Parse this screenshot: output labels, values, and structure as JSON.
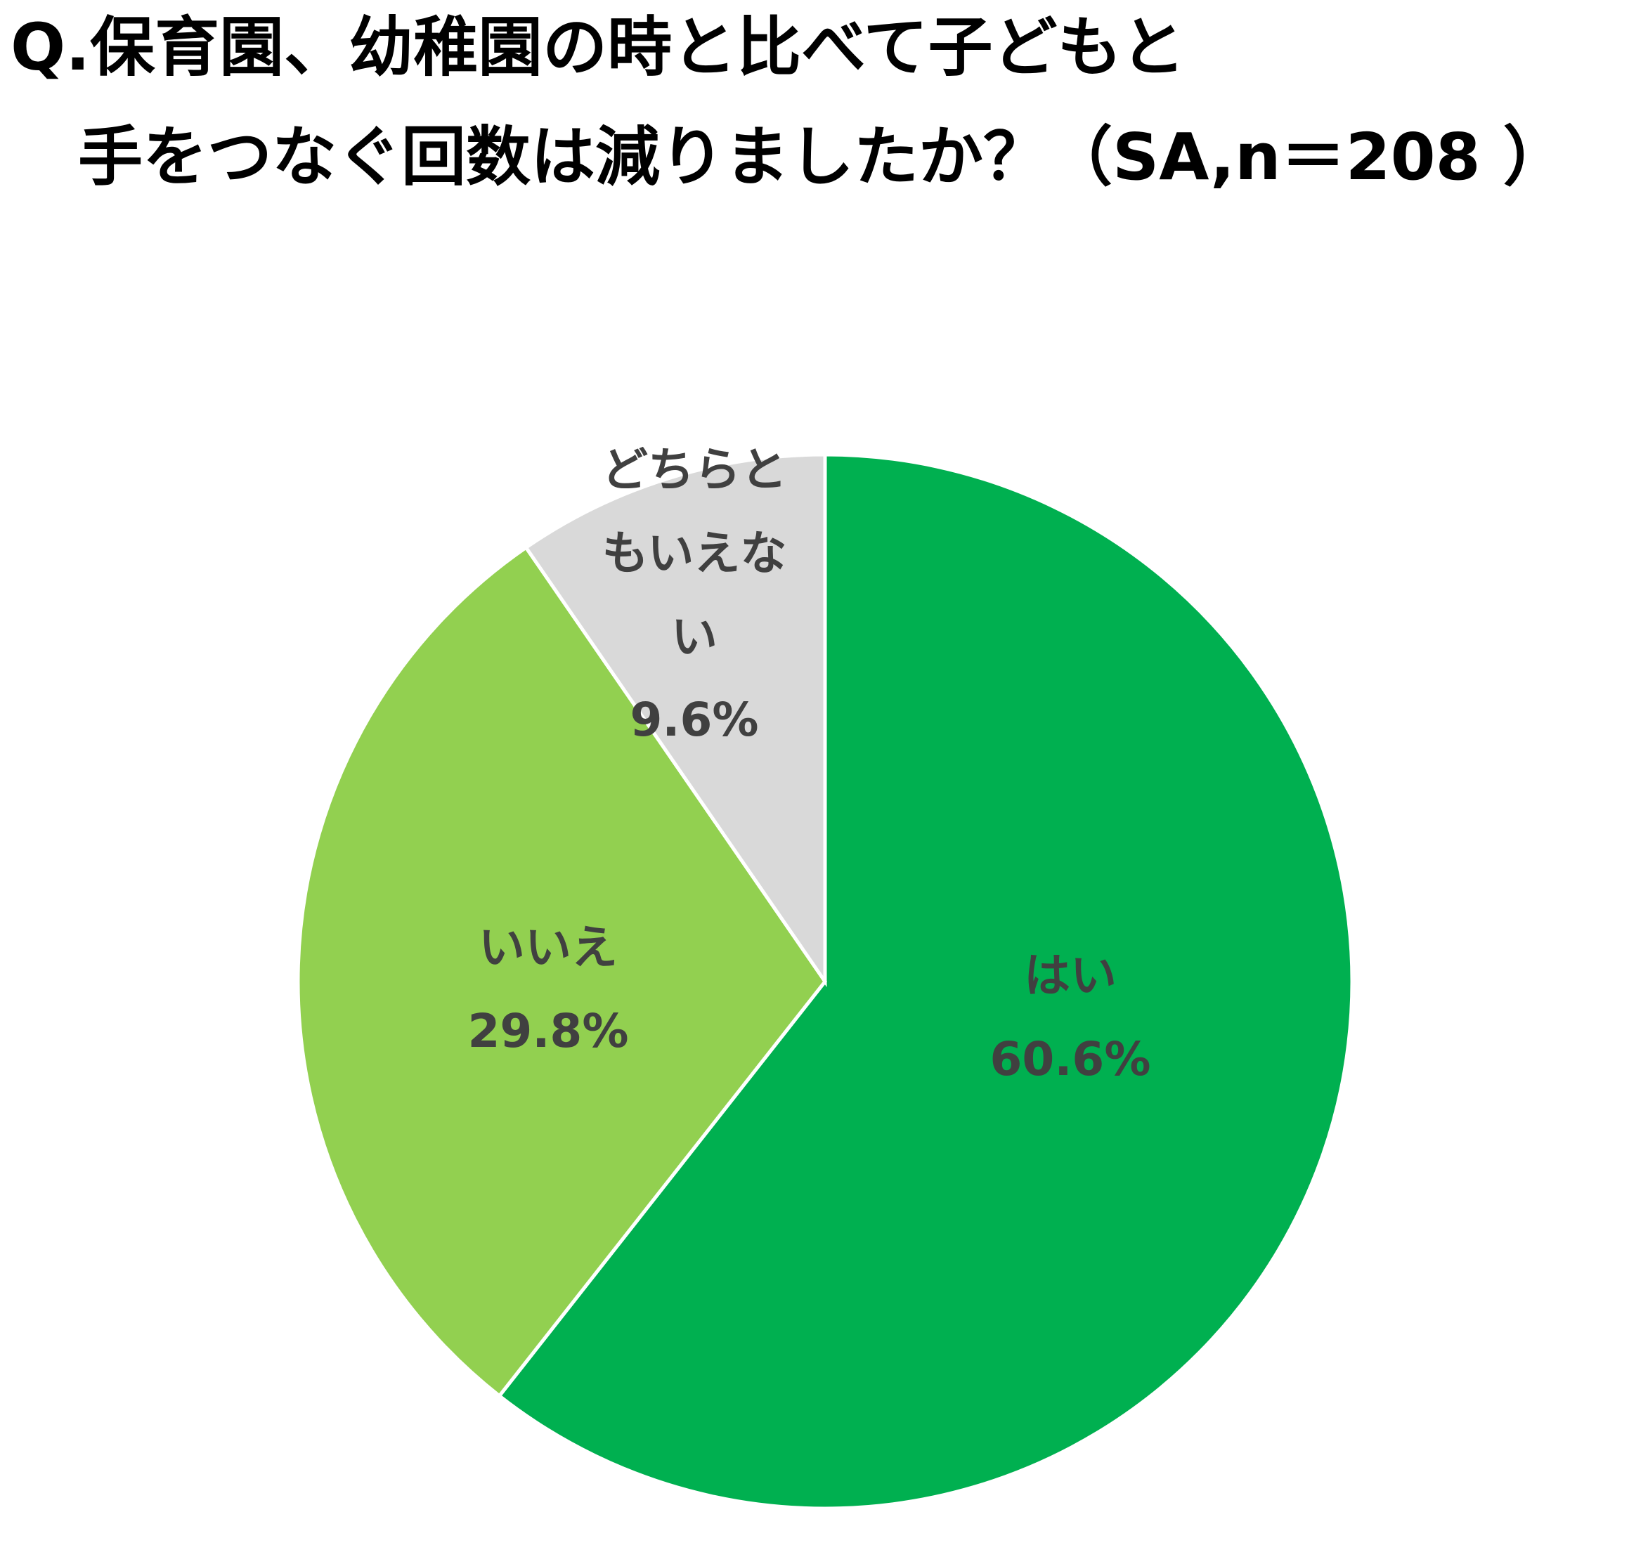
{
  "chart_data": {
    "type": "pie",
    "title": [
      "Q.保育園、幼稚園の時と比べて子どもと",
      "手をつなぐ回数は減りましたか？（SA,n＝208 ）"
    ],
    "categories": [
      "はい",
      "いいえ",
      "どちらともいえない"
    ],
    "values": [
      60.6,
      29.8,
      9.6
    ],
    "value_labels": [
      "60.6%",
      "29.8%",
      "9.6%"
    ],
    "colors": [
      "#00b050",
      "#92d050",
      "#d9d9d9"
    ]
  }
}
